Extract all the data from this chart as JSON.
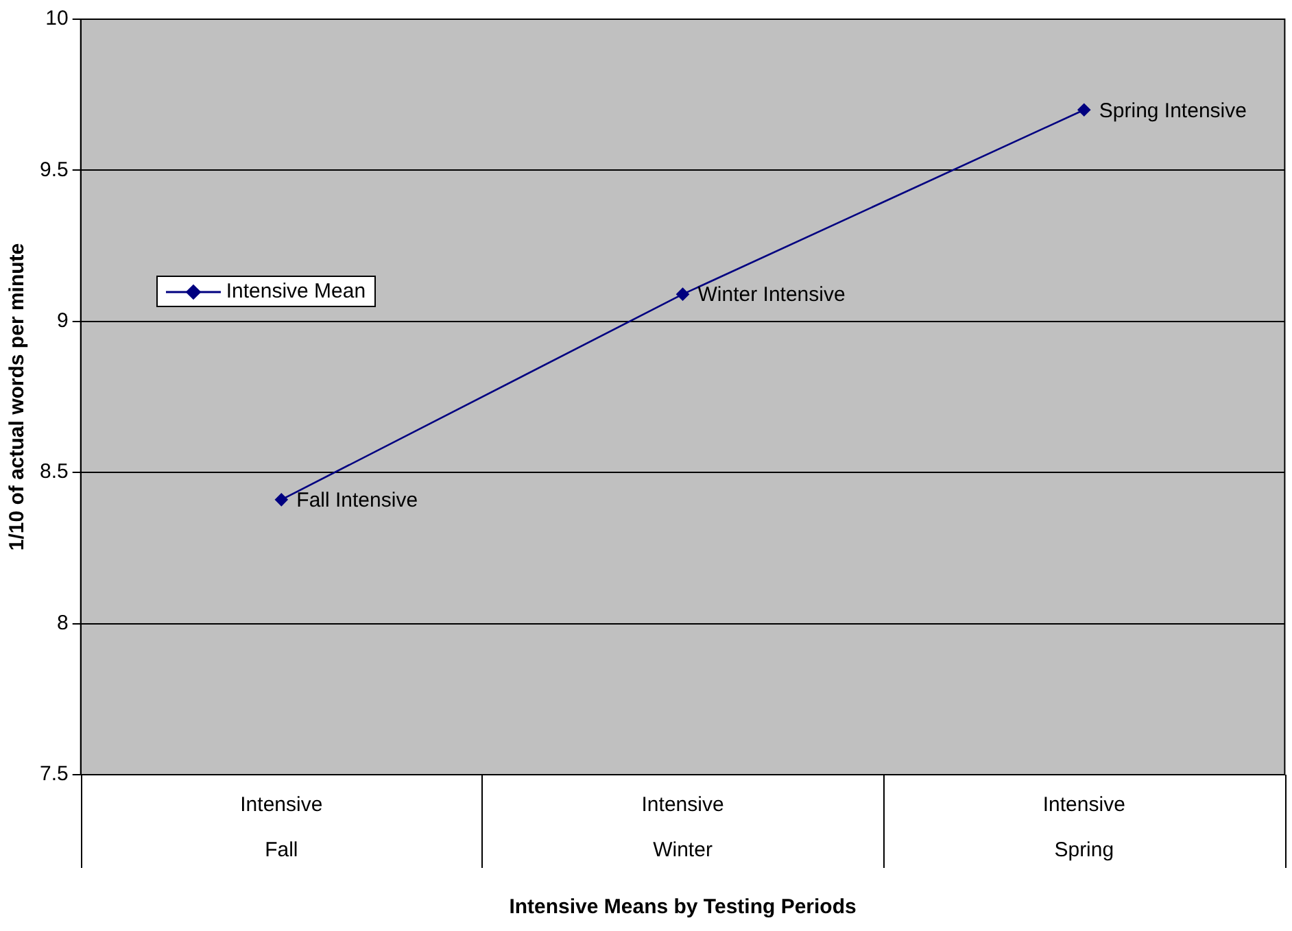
{
  "chart_data": {
    "type": "line",
    "xlabel": "Intensive Means by Testing Periods",
    "ylabel": "1/10 of actual words per minute",
    "categories": [
      "Intensive\nFall",
      "Intensive\nWinter",
      "Intensive\nSpring"
    ],
    "series": [
      {
        "name": "Intensive Mean",
        "color": "#000080",
        "values": [
          8.41,
          9.09,
          9.7
        ]
      }
    ],
    "ylim": [
      7.5,
      10
    ],
    "yticks": [
      7.5,
      8,
      8.5,
      9,
      9.5,
      10
    ],
    "grid": "y",
    "legend": "left",
    "marker": "diamond",
    "line_style": "solid",
    "annotations": [
      {
        "text": "Fall Intensive",
        "x": "Intensive\nFall",
        "y": 8.41
      },
      {
        "text": "Winter Intensive",
        "x": "Intensive\nWinter",
        "y": 9.09
      },
      {
        "text": "Spring Intensive",
        "x": "Intensive\nSpring",
        "y": 9.7
      }
    ]
  }
}
